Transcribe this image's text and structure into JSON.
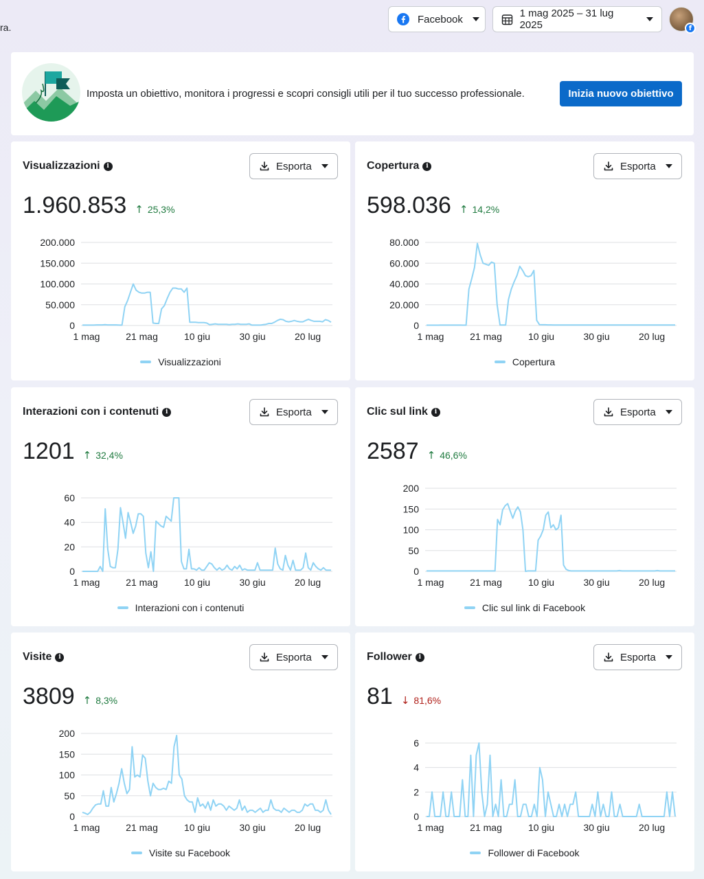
{
  "header": {
    "cut_text": "ra.",
    "platform_label": "Facebook",
    "date_range_label": "1 mag 2025 – 31 lug 2025"
  },
  "banner": {
    "text": "Imposta un obiettivo, monitora i progressi e scopri consigli utili per il tuo successo professionale.",
    "cta_label": "Inizia nuovo obiettivo"
  },
  "colors": {
    "line": "#8fd3f4",
    "grid": "#dddfe2",
    "up": "#1f7a3f",
    "down": "#b0201a",
    "cta": "#0b6ac9"
  },
  "cards": [
    {
      "title": "Visualizzazioni",
      "value": "1.960.853",
      "change": "25,3%",
      "direction": "up",
      "export_label": "Esporta",
      "legend": "Visualizzazioni",
      "y_ticks": [
        "200.000",
        "150.000",
        "100.000",
        "50.000",
        "0"
      ],
      "ymax": 200000
    },
    {
      "title": "Copertura",
      "value": "598.036",
      "change": "14,2%",
      "direction": "up",
      "export_label": "Esporta",
      "legend": "Copertura",
      "y_ticks": [
        "80.000",
        "60.000",
        "40.000",
        "20.000",
        "0"
      ],
      "ymax": 80000
    },
    {
      "title": "Interazioni con i contenuti",
      "value": "1201",
      "change": "32,4%",
      "direction": "up",
      "export_label": "Esporta",
      "legend": "Interazioni con i contenuti",
      "y_ticks": [
        "60",
        "40",
        "20",
        "0"
      ],
      "ymax": 60
    },
    {
      "title": "Clic sul link",
      "value": "2587",
      "change": "46,6%",
      "direction": "up",
      "export_label": "Esporta",
      "legend": "Clic sul link di Facebook",
      "y_ticks": [
        "200",
        "150",
        "100",
        "50",
        "0"
      ],
      "ymax": 200
    },
    {
      "title": "Visite",
      "value": "3809",
      "change": "8,3%",
      "direction": "up",
      "export_label": "Esporta",
      "legend": "Visite su Facebook",
      "y_ticks": [
        "200",
        "150",
        "100",
        "50",
        "0"
      ],
      "ymax": 200
    },
    {
      "title": "Follower",
      "value": "81",
      "change": "81,6%",
      "direction": "down",
      "export_label": "Esporta",
      "legend": "Follower di Facebook",
      "y_ticks": [
        "6",
        "4",
        "2",
        "0"
      ],
      "ymax": 6
    }
  ],
  "chart_data": [
    {
      "type": "line",
      "name": "Visualizzazioni",
      "x_tick_labels": [
        "1 mag",
        "21 mag",
        "10 giu",
        "30 giu",
        "20 lug"
      ],
      "ylim": [
        0,
        200000
      ],
      "values": [
        1000,
        1000,
        1000,
        1000,
        1000,
        1500,
        1500,
        1500,
        2000,
        1500,
        1500,
        1500,
        1500,
        1000,
        1000,
        45000,
        60000,
        80000,
        100000,
        85000,
        80000,
        78000,
        78000,
        80000,
        80000,
        6000,
        5000,
        5000,
        40000,
        48000,
        65000,
        80000,
        90000,
        90000,
        88000,
        88000,
        80000,
        90000,
        8000,
        8000,
        8000,
        7000,
        7000,
        7000,
        6000,
        2000,
        3000,
        4000,
        3000,
        3000,
        3000,
        3000,
        2000,
        3000,
        3000,
        4000,
        3000,
        3000,
        3000,
        4000,
        1000,
        1000,
        1000,
        1000,
        2000,
        3000,
        5000,
        5000,
        8000,
        12000,
        15000,
        14000,
        10000,
        9000,
        10000,
        12000,
        10000,
        9000,
        9000,
        12000,
        15000,
        12000,
        10000,
        10000,
        10000,
        9000,
        14000,
        12000,
        8000
      ]
    },
    {
      "type": "line",
      "name": "Copertura",
      "x_tick_labels": [
        "1 mag",
        "21 mag",
        "10 giu",
        "30 giu",
        "20 lug"
      ],
      "ylim": [
        0,
        80000
      ],
      "values": [
        300,
        300,
        300,
        300,
        300,
        400,
        400,
        400,
        400,
        400,
        400,
        400,
        400,
        300,
        300,
        35000,
        45000,
        56000,
        79000,
        68000,
        60000,
        59000,
        58000,
        61000,
        60000,
        20000,
        500,
        500,
        500,
        25000,
        35000,
        42000,
        48000,
        57000,
        53000,
        48000,
        47000,
        48000,
        53000,
        5000,
        800,
        700,
        700,
        600,
        600,
        500,
        500,
        500,
        500,
        500,
        500,
        500,
        500,
        500,
        500,
        500,
        500,
        500,
        500,
        500,
        500,
        500,
        500,
        500,
        500,
        500,
        500,
        500,
        500,
        500,
        500,
        500,
        500,
        500,
        500,
        500,
        500,
        500,
        500,
        500,
        500,
        500,
        500,
        500,
        500,
        500,
        500,
        500,
        500
      ]
    },
    {
      "type": "line",
      "name": "Interazioni con i contenuti",
      "x_tick_labels": [
        "1 mag",
        "21 mag",
        "10 giu",
        "30 giu",
        "20 lug"
      ],
      "ylim": [
        0,
        60
      ],
      "values": [
        0,
        0,
        0,
        0,
        0,
        0,
        0,
        4,
        0,
        51,
        18,
        4,
        3,
        3,
        18,
        52,
        40,
        27,
        48,
        40,
        31,
        37,
        47,
        47,
        45,
        15,
        3,
        16,
        0,
        41,
        39,
        37,
        36,
        45,
        43,
        41,
        61,
        60,
        61,
        8,
        2,
        2,
        18,
        2,
        2,
        1,
        3,
        1,
        1,
        4,
        7,
        6,
        3,
        1,
        3,
        1,
        2,
        5,
        2,
        1,
        4,
        2,
        5,
        1,
        2,
        1,
        1,
        1,
        1,
        7,
        1,
        1,
        1,
        1,
        1,
        1,
        19,
        6,
        2,
        1,
        13,
        5,
        1,
        9,
        1,
        1,
        1,
        3,
        15,
        3,
        1,
        7,
        4,
        2,
        1,
        3,
        1,
        1,
        1
      ]
    },
    {
      "type": "line",
      "name": "Clic sul link di Facebook",
      "x_tick_labels": [
        "1 mag",
        "21 mag",
        "10 giu",
        "30 giu",
        "20 lug"
      ],
      "ylim": [
        0,
        200
      ],
      "values": [
        1,
        1,
        1,
        1,
        1,
        1,
        1,
        1,
        1,
        1,
        1,
        1,
        1,
        1,
        1,
        1,
        1,
        1,
        1,
        1,
        1,
        1,
        1,
        1,
        1,
        1,
        1,
        1,
        125,
        112,
        148,
        158,
        163,
        145,
        128,
        145,
        155,
        143,
        100,
        0,
        1,
        1,
        1,
        1,
        75,
        85,
        100,
        135,
        143,
        105,
        112,
        100,
        105,
        135,
        15,
        5,
        2,
        1,
        1,
        1,
        1,
        1,
        1,
        1,
        1,
        1,
        1,
        1,
        1,
        1,
        1,
        1,
        1,
        1,
        1,
        1,
        2,
        1,
        1,
        1,
        1,
        1,
        1,
        1,
        1,
        1,
        1,
        1,
        1,
        1,
        1,
        2,
        1,
        1,
        1,
        1,
        1,
        1,
        1
      ]
    },
    {
      "type": "line",
      "name": "Visite su Facebook",
      "x_tick_labels": [
        "1 mag",
        "21 mag",
        "10 giu",
        "30 giu",
        "20 lug"
      ],
      "ylim": [
        0,
        200
      ],
      "values": [
        10,
        8,
        5,
        10,
        20,
        28,
        30,
        30,
        62,
        25,
        25,
        70,
        35,
        55,
        80,
        115,
        80,
        55,
        65,
        168,
        95,
        100,
        95,
        148,
        140,
        85,
        50,
        80,
        70,
        65,
        65,
        68,
        65,
        85,
        80,
        168,
        195,
        100,
        90,
        50,
        40,
        35,
        35,
        10,
        45,
        25,
        30,
        20,
        35,
        15,
        40,
        25,
        30,
        30,
        25,
        15,
        25,
        20,
        15,
        20,
        40,
        15,
        25,
        10,
        15,
        15,
        10,
        15,
        20,
        10,
        15,
        15,
        40,
        20,
        15,
        15,
        10,
        20,
        15,
        10,
        15,
        15,
        10,
        10,
        15,
        30,
        25,
        30,
        30,
        15,
        15,
        10,
        15,
        40,
        15,
        5
      ]
    },
    {
      "type": "line",
      "name": "Follower di Facebook",
      "x_tick_labels": [
        "1 mag",
        "21 mag",
        "10 giu",
        "30 giu",
        "20 lug"
      ],
      "ylim": [
        0,
        6
      ],
      "values": [
        0,
        0,
        2,
        0,
        0,
        0,
        2,
        0,
        0,
        2,
        0,
        0,
        0,
        3,
        0,
        0,
        5,
        0,
        5,
        6,
        2,
        0,
        1,
        5,
        0,
        1,
        0,
        3,
        0,
        0,
        1,
        1,
        3,
        0,
        0,
        1,
        1,
        0,
        0,
        1,
        0,
        4,
        3,
        0,
        2,
        1,
        0,
        0,
        1,
        0,
        1,
        0,
        1,
        1,
        2,
        0,
        0,
        0,
        0,
        0,
        1,
        0,
        2,
        0,
        1,
        0,
        0,
        2,
        0,
        0,
        1,
        0,
        0,
        0,
        0,
        0,
        0,
        1,
        0,
        0,
        0,
        0,
        0,
        0,
        0,
        0,
        0,
        2,
        0,
        2,
        0
      ]
    }
  ]
}
